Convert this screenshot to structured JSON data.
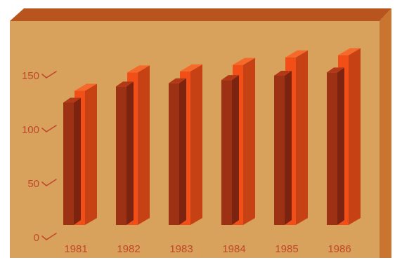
{
  "colors": {
    "panel": "#d9a25c",
    "panel_top": "#b8541e",
    "panel_side": "#c9752f",
    "bar_left": "#9c3113",
    "bar_left_face": "#7d2410",
    "bar_right": "#f24f18",
    "bar_top": "#f56a2a",
    "text": "#c0482a"
  },
  "chart_data": {
    "type": "bar",
    "title": "",
    "xlabel": "",
    "ylabel": "",
    "categories": [
      "1981",
      "1982",
      "1983",
      "1984",
      "1985",
      "1986"
    ],
    "series": [
      {
        "values": [
          125,
          140,
          143,
          146,
          150,
          153
        ]
      },
      {
        "values": [
          136,
          153,
          154,
          160,
          167,
          169
        ]
      }
    ],
    "ylim": [
      0,
      150
    ],
    "yticks": [
      "0",
      "50",
      "100",
      "150"
    ],
    "grid": false,
    "style": "3d-bars"
  }
}
